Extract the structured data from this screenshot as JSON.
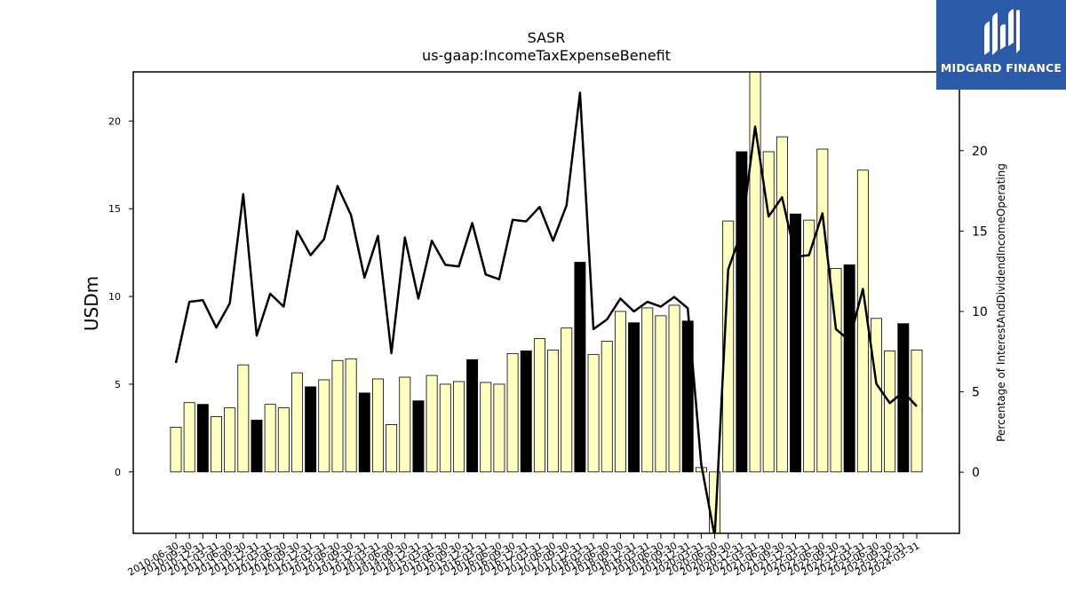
{
  "brand": {
    "name": "MIDGARD FINANCE",
    "bg_color": "#2b5aa8"
  },
  "chart_data": {
    "type": "bar+line",
    "title": "SASR",
    "subtitle": "us-gaap:IncomeTaxExpenseBenefit",
    "ylabel": "USDm",
    "y2label": "Percentage of InterestAndDividendIncomeOperating",
    "ylim": [
      -3.5,
      22.8
    ],
    "y2lim": [
      -3.8,
      24.9
    ],
    "yticks": [
      0,
      5,
      10,
      15,
      20
    ],
    "y2ticks": [
      0,
      5,
      10,
      15,
      20
    ],
    "grid": false,
    "bar_color_default": "#ffffc0",
    "bar_color_highlight": "#000000",
    "line_color": "#000000",
    "x_tick_labels": [
      "2010-06-30",
      "2010-09-30",
      "2010-12-31",
      "2011-03-31",
      "2011-06-30",
      "2011-09-30",
      "2011-12-31",
      "2012-03-31",
      "2012-06-30",
      "2012-09-30",
      "2012-12-31",
      "2013-03-31",
      "2013-06-30",
      "2013-09-30",
      "2013-12-31",
      "2014-03-31",
      "2014-06-30",
      "2014-09-30",
      "2014-12-31",
      "2015-03-31",
      "2015-06-30",
      "2015-09-30",
      "2015-12-31",
      "2016-03-31",
      "2016-06-30",
      "2016-09-30",
      "2016-12-31",
      "2017-03-31",
      "2017-06-30",
      "2017-09-30",
      "2017-12-31",
      "2018-03-31",
      "2018-06-30",
      "2018-09-30",
      "2018-12-31",
      "2019-03-31",
      "2019-06-30",
      "2019-09-30",
      "2019-12-31",
      "2020-03-31",
      "2020-06-30",
      "2020-09-30",
      "2020-12-31",
      "2021-03-31",
      "2021-06-30",
      "2021-09-30",
      "2021-12-31",
      "2022-03-31",
      "2022-06-30",
      "2022-09-30",
      "2022-12-31",
      "2023-03-31",
      "2023-06-30",
      "2023-09-30",
      "2023-12-31",
      "2024-03-31"
    ],
    "bar_values": [
      2.55,
      3.95,
      3.85,
      3.15,
      3.65,
      6.1,
      2.95,
      3.85,
      3.65,
      5.65,
      4.85,
      5.25,
      6.35,
      6.45,
      4.5,
      5.3,
      2.7,
      5.4,
      4.05,
      5.5,
      5.0,
      5.15,
      6.4,
      5.1,
      5.0,
      6.75,
      6.9,
      7.6,
      6.95,
      8.2,
      11.95,
      6.7,
      7.45,
      9.15,
      8.5,
      9.35,
      8.9,
      9.5,
      8.6,
      0.25,
      -3.5,
      14.3,
      18.25,
      22.8,
      18.25,
      19.1,
      14.7,
      14.35,
      18.4,
      11.6,
      11.8,
      17.2,
      8.75,
      6.9,
      8.45,
      6.95
    ],
    "bar_highlight": [
      false,
      false,
      true,
      false,
      false,
      false,
      true,
      false,
      false,
      false,
      true,
      false,
      false,
      false,
      true,
      false,
      false,
      false,
      true,
      false,
      false,
      false,
      true,
      false,
      false,
      false,
      true,
      false,
      false,
      false,
      true,
      false,
      false,
      false,
      true,
      false,
      false,
      false,
      true,
      false,
      false,
      false,
      true,
      false,
      false,
      false,
      true,
      false,
      false,
      false,
      true,
      false,
      false,
      false,
      true,
      false
    ],
    "line_values": [
      6.8,
      10.6,
      10.7,
      9.0,
      10.5,
      17.3,
      8.5,
      11.1,
      10.3,
      15.0,
      13.5,
      14.5,
      17.8,
      16.0,
      12.1,
      14.7,
      7.4,
      14.6,
      10.8,
      14.4,
      12.9,
      12.8,
      15.5,
      12.3,
      12.0,
      15.7,
      15.6,
      16.5,
      14.4,
      16.6,
      23.6,
      8.9,
      9.5,
      10.8,
      10.0,
      10.6,
      10.3,
      10.9,
      10.2,
      0.5,
      -4.0,
      12.6,
      15.0,
      21.5,
      15.9,
      17.1,
      13.4,
      13.5,
      16.1,
      8.9,
      8.2,
      11.4,
      5.5,
      4.3,
      5.0,
      4.1
    ]
  }
}
